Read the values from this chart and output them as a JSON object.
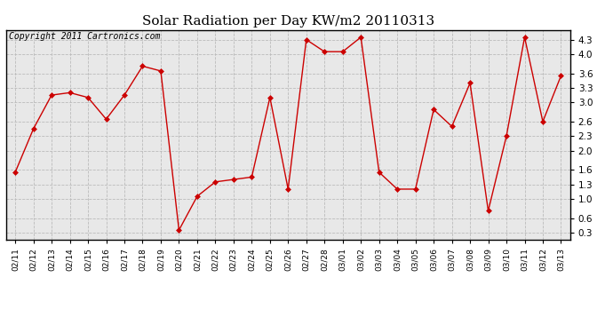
{
  "title": "Solar Radiation per Day KW/m2 20110313",
  "copyright_text": "Copyright 2011 Cartronics.com",
  "dates": [
    "02/11",
    "02/12",
    "02/13",
    "02/14",
    "02/15",
    "02/16",
    "02/17",
    "02/18",
    "02/19",
    "02/20",
    "02/21",
    "02/22",
    "02/23",
    "02/24",
    "02/25",
    "02/26",
    "02/27",
    "02/28",
    "03/01",
    "03/02",
    "03/03",
    "03/04",
    "03/05",
    "03/06",
    "03/07",
    "03/08",
    "03/09",
    "03/10",
    "03/11",
    "03/12",
    "03/13"
  ],
  "values": [
    1.55,
    2.45,
    3.15,
    3.2,
    3.1,
    2.65,
    3.15,
    3.75,
    3.65,
    0.35,
    1.05,
    1.35,
    1.4,
    1.45,
    3.1,
    1.2,
    4.3,
    4.05,
    4.05,
    4.35,
    1.55,
    1.2,
    1.2,
    2.85,
    2.5,
    3.4,
    0.75,
    2.3,
    4.35,
    2.6,
    3.55
  ],
  "line_color": "#cc0000",
  "marker_color": "#cc0000",
  "bg_color": "#ffffff",
  "plot_bg_color": "#e8e8e8",
  "grid_color": "#bbbbbb",
  "yticks": [
    0.3,
    0.6,
    1.0,
    1.3,
    1.6,
    2.0,
    2.3,
    2.6,
    3.0,
    3.3,
    3.6,
    4.0,
    4.3
  ],
  "ylim": [
    0.15,
    4.5
  ],
  "title_fontsize": 11,
  "copyright_fontsize": 7,
  "tick_fontsize": 7.5,
  "xtick_fontsize": 6.5
}
